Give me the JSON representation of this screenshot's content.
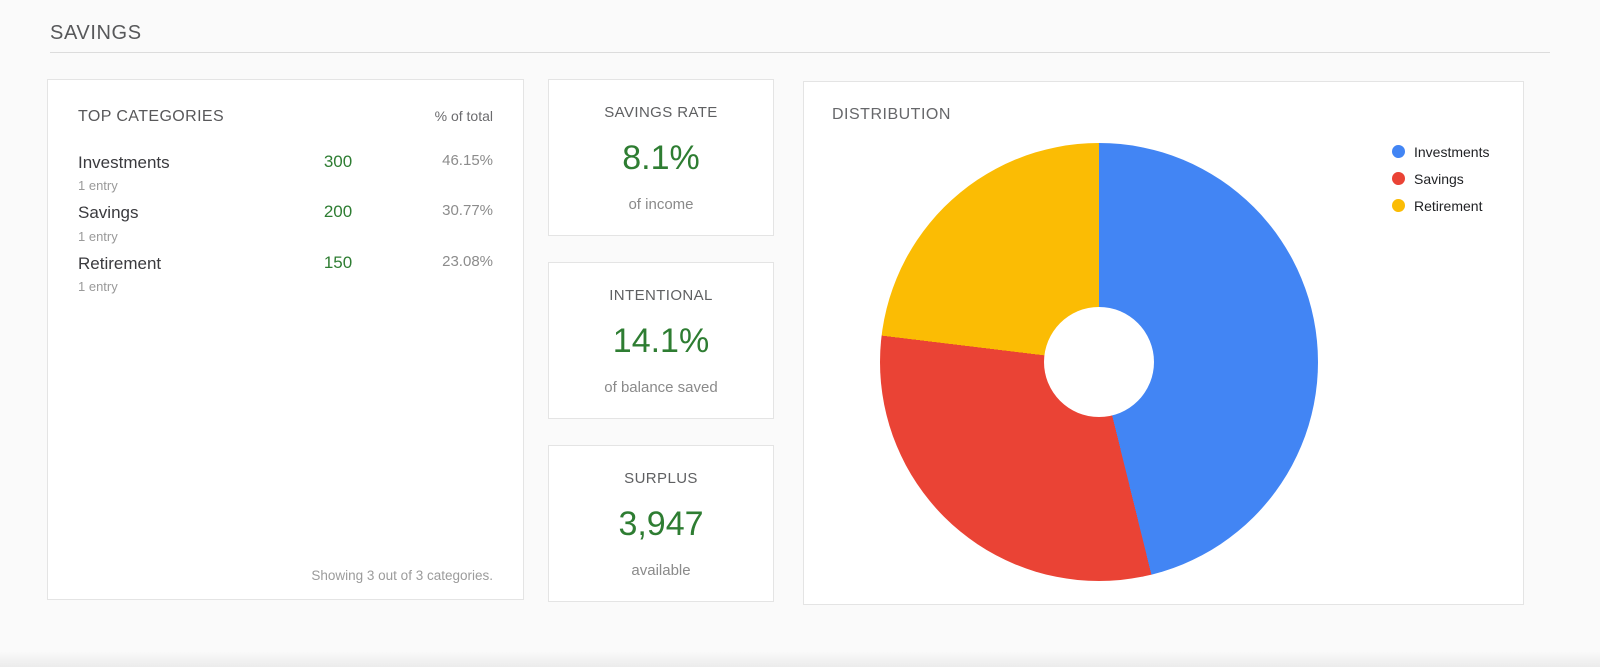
{
  "page": {
    "title": "SAVINGS"
  },
  "top_categories": {
    "title": "TOP CATEGORIES",
    "col_header": "% of total",
    "rows": [
      {
        "name": "Investments",
        "entries": "1 entry",
        "amount": "300",
        "percent": "46.15%"
      },
      {
        "name": "Savings",
        "entries": "1 entry",
        "amount": "200",
        "percent": "30.77%"
      },
      {
        "name": "Retirement",
        "entries": "1 entry",
        "amount": "150",
        "percent": "23.08%"
      }
    ],
    "footer": "Showing 3 out of 3 categories."
  },
  "stats": [
    {
      "title": "SAVINGS RATE",
      "value": "8.1%",
      "caption": "of income"
    },
    {
      "title": "INTENTIONAL",
      "value": "14.1%",
      "caption": "of balance saved"
    },
    {
      "title": "SURPLUS",
      "value": "3,947",
      "caption": "available"
    }
  ],
  "distribution": {
    "title": "DISTRIBUTION"
  },
  "chart_data": {
    "type": "pie",
    "title": "DISTRIBUTION",
    "categories": [
      "Investments",
      "Savings",
      "Retirement"
    ],
    "values": [
      300,
      200,
      150
    ],
    "percentages": [
      46.15,
      30.77,
      23.08
    ],
    "colors": [
      "#4285f4",
      "#ea4335",
      "#fbbc04"
    ],
    "donut_hole_ratio": 0.25,
    "start_angle_deg": 0,
    "direction": "clockwise",
    "legend_position": "right"
  },
  "colors": {
    "value_green": "#2e7d32",
    "panel_border": "#e4e4e4",
    "background": "#fafafa"
  }
}
